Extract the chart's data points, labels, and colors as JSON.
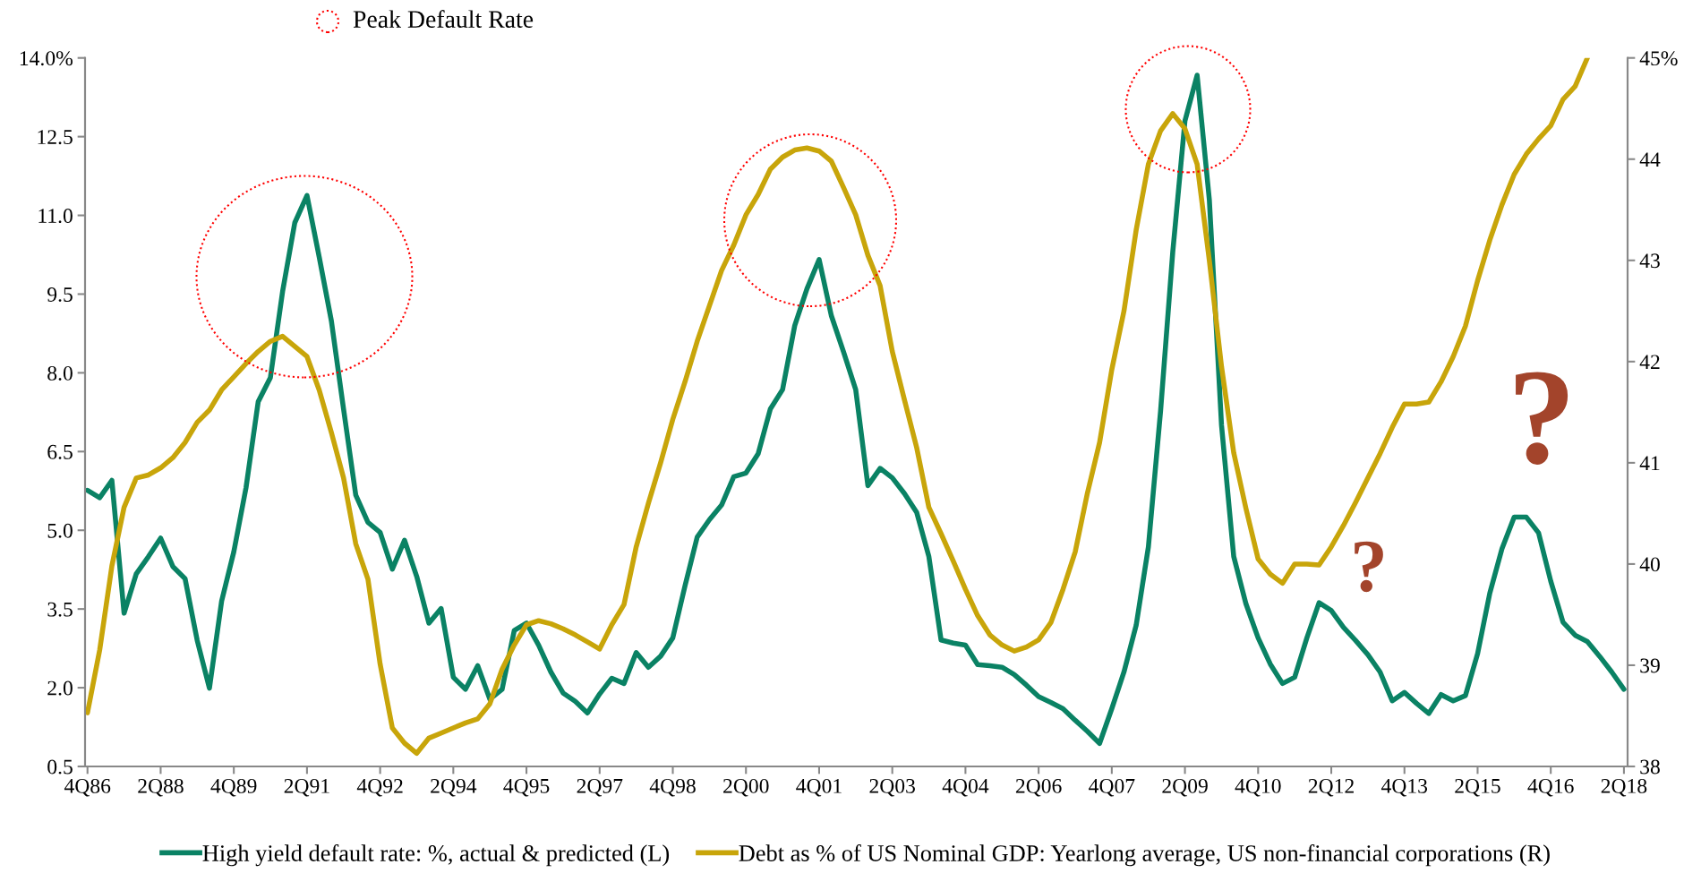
{
  "chart_data": {
    "type": "line",
    "annotations": [
      "Peak Default Rate",
      "?",
      "?"
    ],
    "categories": [
      "4Q86",
      null,
      null,
      null,
      null,
      null,
      "2Q88",
      null,
      null,
      null,
      null,
      null,
      "4Q89",
      null,
      null,
      null,
      null,
      null,
      "2Q91",
      null,
      null,
      null,
      null,
      null,
      "4Q92",
      null,
      null,
      null,
      null,
      null,
      "2Q94",
      null,
      null,
      null,
      null,
      null,
      "4Q95",
      null,
      null,
      null,
      null,
      null,
      "2Q97",
      null,
      null,
      null,
      null,
      null,
      "4Q98",
      null,
      null,
      null,
      null,
      null,
      "2Q00",
      null,
      null,
      null,
      null,
      null,
      "4Q01",
      null,
      null,
      null,
      null,
      null,
      "2Q03",
      null,
      null,
      null,
      null,
      null,
      "4Q04",
      null,
      null,
      null,
      null,
      null,
      "2Q06",
      null,
      null,
      null,
      null,
      null,
      "4Q07",
      null,
      null,
      null,
      null,
      null,
      "2Q09",
      null,
      null,
      null,
      null,
      null,
      "4Q10",
      null,
      null,
      null,
      null,
      null,
      "2Q12",
      null,
      null,
      null,
      null,
      null,
      "4Q13",
      null,
      null,
      null,
      null,
      null,
      "2Q15",
      null,
      null,
      null,
      null,
      null,
      "4Q16",
      null,
      null,
      null,
      null,
      null,
      "2Q18"
    ],
    "series": [
      {
        "name": "High yield default rate: %, actual & predicted (L)",
        "color": "#0a8264",
        "axis": "y",
        "values": [
          5.76,
          5.62,
          5.95,
          3.42,
          4.17,
          4.5,
          4.85,
          4.31,
          4.08,
          2.9,
          1.99,
          3.65,
          4.59,
          5.81,
          7.45,
          7.91,
          9.55,
          10.86,
          11.38,
          10.21,
          8.99,
          7.31,
          5.67,
          5.15,
          4.96,
          4.26,
          4.81,
          4.12,
          3.23,
          3.51,
          2.2,
          1.97,
          2.42,
          1.78,
          1.97,
          3.09,
          3.23,
          2.81,
          2.3,
          1.9,
          1.74,
          1.52,
          1.88,
          2.18,
          2.08,
          2.67,
          2.39,
          2.6,
          2.95,
          3.94,
          4.87,
          5.2,
          5.48,
          6.02,
          6.09,
          6.46,
          7.31,
          7.68,
          8.9,
          9.6,
          10.16,
          9.09,
          8.4,
          7.68,
          5.85,
          6.18,
          6.0,
          5.7,
          5.34,
          4.5,
          2.91,
          2.85,
          2.81,
          2.44,
          2.42,
          2.39,
          2.25,
          2.05,
          1.83,
          1.72,
          1.6,
          1.38,
          1.17,
          0.94,
          1.6,
          2.3,
          3.19,
          4.68,
          7.27,
          10.3,
          12.8,
          13.67,
          11.3,
          7.0,
          4.5,
          3.6,
          2.95,
          2.45,
          2.08,
          2.2,
          2.95,
          3.62,
          3.47,
          3.15,
          2.9,
          2.63,
          2.3,
          1.75,
          1.91,
          1.7,
          1.51,
          1.87,
          1.75,
          1.85,
          2.65,
          3.8,
          4.65,
          5.25,
          5.25,
          4.95,
          4.03,
          3.25,
          3.0,
          2.88,
          2.6,
          2.3,
          1.97
        ]
      },
      {
        "name": "Debt as % of US Nominal GDP: Yearlong average, US non-financial corporations (R)",
        "color": "#c8a50a",
        "axis": "y2",
        "values": [
          38.53,
          39.15,
          39.98,
          40.56,
          40.85,
          40.88,
          40.95,
          41.05,
          41.2,
          41.4,
          41.52,
          41.72,
          41.85,
          41.98,
          42.1,
          42.2,
          42.25,
          42.15,
          42.05,
          41.72,
          41.3,
          40.85,
          40.2,
          39.85,
          39.01,
          38.38,
          38.23,
          38.13,
          38.28,
          38.33,
          38.38,
          38.43,
          38.47,
          38.62,
          38.96,
          39.2,
          39.4,
          39.44,
          39.41,
          39.36,
          39.3,
          39.23,
          39.16,
          39.4,
          39.6,
          40.17,
          40.6,
          41.0,
          41.43,
          41.8,
          42.2,
          42.55,
          42.9,
          43.15,
          43.45,
          43.65,
          43.9,
          44.02,
          44.09,
          44.11,
          44.08,
          43.98,
          43.72,
          43.45,
          43.05,
          42.75,
          42.1,
          41.62,
          41.15,
          40.56,
          40.3,
          40.03,
          39.75,
          39.49,
          39.3,
          39.2,
          39.14,
          39.18,
          39.25,
          39.42,
          39.75,
          40.12,
          40.7,
          41.2,
          41.92,
          42.5,
          43.3,
          43.95,
          44.28,
          44.45,
          44.3,
          43.95,
          43.0,
          41.95,
          41.1,
          40.55,
          40.05,
          39.9,
          39.81,
          40.0,
          40.0,
          39.99,
          40.17,
          40.38,
          40.61,
          40.85,
          41.09,
          41.35,
          41.58,
          41.58,
          41.6,
          41.8,
          42.05,
          42.35,
          42.8,
          43.2,
          43.55,
          43.85,
          44.05,
          44.2,
          44.33,
          44.59,
          44.72,
          45.0,
          null,
          null,
          null
        ]
      }
    ],
    "ylim": [
      0.5,
      14.0
    ],
    "yticks": [
      {
        "value": 0.5,
        "label": "0.5"
      },
      {
        "value": 2.0,
        "label": "2.0"
      },
      {
        "value": 3.5,
        "label": "3.5"
      },
      {
        "value": 5.0,
        "label": "5.0"
      },
      {
        "value": 6.5,
        "label": "6.5"
      },
      {
        "value": 8.0,
        "label": "8.0"
      },
      {
        "value": 9.5,
        "label": "9.5"
      },
      {
        "value": 11.0,
        "label": "11.0"
      },
      {
        "value": 12.5,
        "label": "12.5"
      },
      {
        "value": 14.0,
        "label": "14.0%"
      }
    ],
    "y2lim": [
      38,
      45
    ],
    "y2ticks": [
      38,
      39,
      40,
      41,
      42,
      43,
      44,
      {
        "value": 45,
        "label": "45%"
      }
    ],
    "grid": false,
    "legend": "bottom",
    "marker": "none",
    "line_style": "solid"
  }
}
